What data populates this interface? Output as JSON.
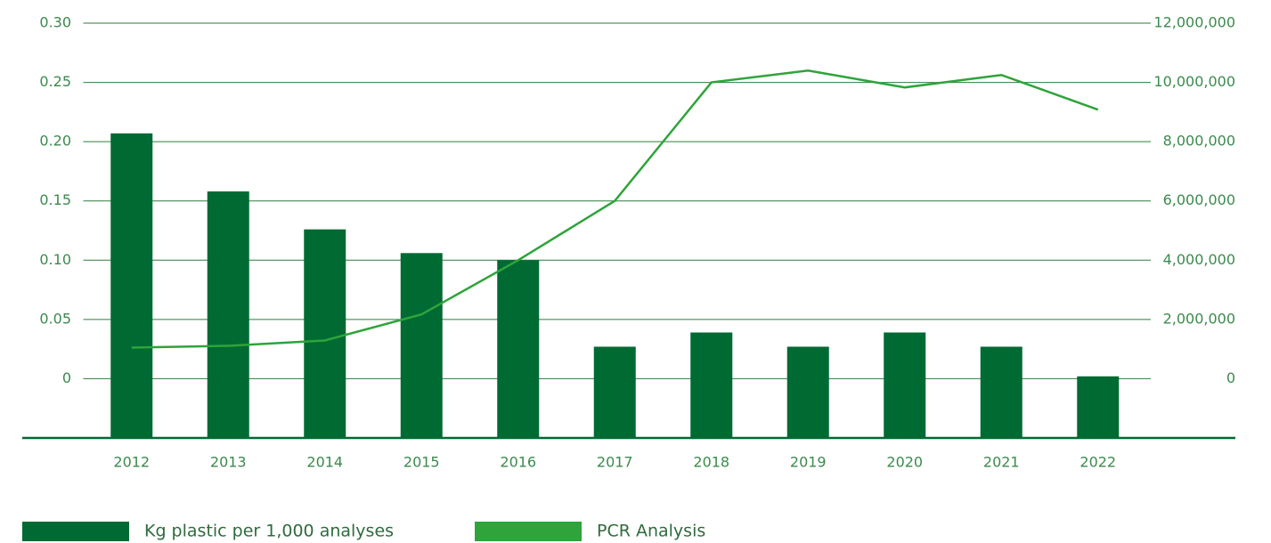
{
  "chart_data": {
    "type": "bar_line",
    "categories": [
      "2012",
      "2013",
      "2014",
      "2015",
      "2016",
      "2017",
      "2018",
      "2019",
      "2020",
      "2021",
      "2022"
    ],
    "series": [
      {
        "name": "Kg plastic per 1,000 analyses",
        "color": "#006a33",
        "type": "bar",
        "values": [
          0.207,
          0.158,
          0.126,
          0.106,
          0.1,
          0.027,
          0.039,
          0.027,
          0.039,
          0.027,
          0.002
        ]
      },
      {
        "name": "PCR Analysis",
        "color": "#2ea43a",
        "type": "line",
        "axis": "y2",
        "values": [
          1050000,
          1110000,
          1290000,
          2170000,
          4000000,
          6000000,
          10000000,
          10400000,
          9830000,
          10250000,
          9080000
        ]
      }
    ],
    "ylim": [
      -0.05,
      0.3
    ],
    "yticks": [
      0,
      {
        "value": 0.05,
        "label": "0.05"
      },
      {
        "value": 0.1,
        "label": "0.10"
      },
      0.15,
      {
        "value": 0.2,
        "label": "0.20"
      },
      0.25,
      {
        "value": 0.3,
        "label": "0.30"
      }
    ],
    "y2lim": [
      -2000000,
      12000000
    ],
    "y2ticks": [
      0,
      {
        "value": 2000000,
        "label": "2,000,000"
      },
      {
        "value": 4000000,
        "label": "4,000,000"
      },
      {
        "value": 6000000,
        "label": "6,000,000"
      },
      {
        "value": 8000000,
        "label": "8,000,000"
      },
      {
        "value": 10000000,
        "label": "10,000,000"
      },
      {
        "value": 12000000,
        "label": "12,000,000"
      }
    ],
    "grid": true,
    "legend": "bottom"
  }
}
